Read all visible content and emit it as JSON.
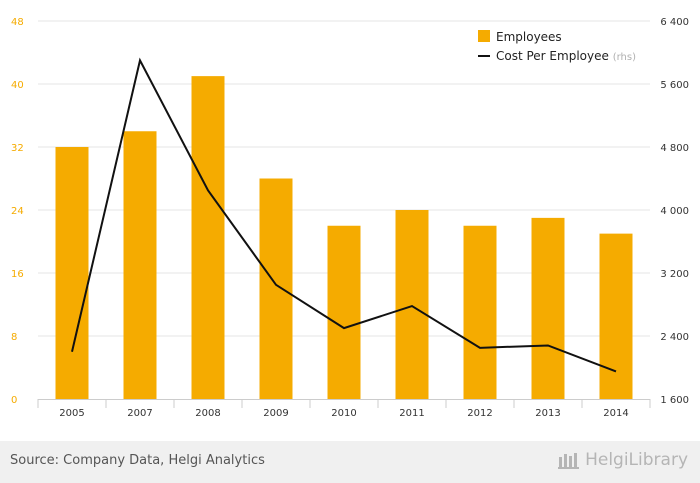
{
  "chart_data": {
    "type": "bar",
    "categories": [
      "2005",
      "2007",
      "2008",
      "2009",
      "2010",
      "2011",
      "2012",
      "2013",
      "2014"
    ],
    "series": [
      {
        "name": "Employees",
        "type": "bar",
        "axis": "left",
        "values": [
          32,
          34,
          41,
          28,
          22,
          24,
          22,
          23,
          21
        ]
      },
      {
        "name": "Cost Per Employee",
        "type": "line",
        "axis": "right",
        "values": [
          2200,
          5900,
          4250,
          3050,
          2500,
          2780,
          2250,
          2280,
          1950
        ]
      }
    ],
    "left_axis": {
      "min": 0,
      "max": 48,
      "ticks": [
        0,
        8,
        16,
        24,
        32,
        40,
        48
      ]
    },
    "right_axis": {
      "min": 1600,
      "max": 6400,
      "ticks": [
        1600,
        2400,
        3200,
        4000,
        4800,
        5600,
        6400
      ],
      "tick_labels": [
        "1 600",
        "2 400",
        "3 200",
        "4 000",
        "4 800",
        "5 600",
        "6 400"
      ]
    },
    "legend": {
      "position": "top-right",
      "items": [
        {
          "label": "Employees",
          "suffix": ""
        },
        {
          "label": "Cost Per Employee",
          "suffix": "(rhs)"
        }
      ]
    },
    "grid": true,
    "colors": {
      "bar": "#f5ab00",
      "line": "#111111",
      "left_ticks": "#f5ab00",
      "grid": "#e6e6e6"
    }
  },
  "footer": {
    "source": "Source: Company Data, Helgi Analytics",
    "brand": "HelgiLibrary"
  }
}
